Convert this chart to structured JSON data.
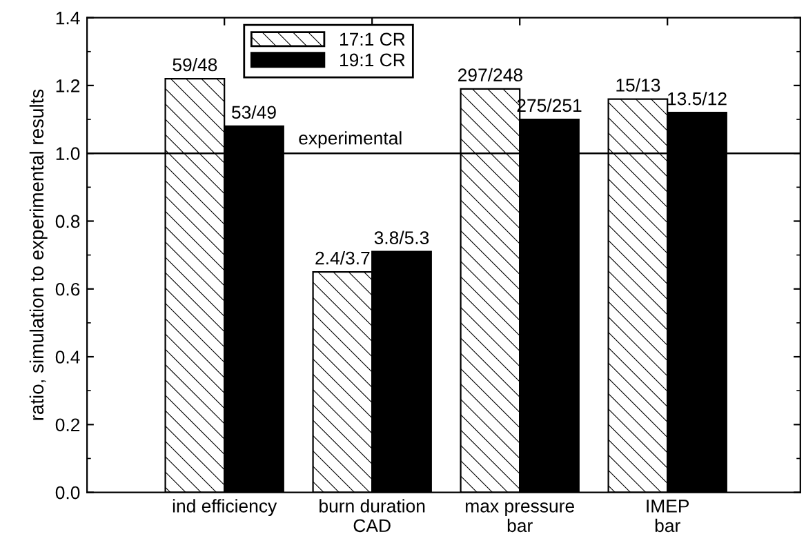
{
  "chart_data": {
    "type": "bar",
    "ylabel": "ratio, simulation to experimental results",
    "categories": [
      "ind efficiency",
      "burn duration\nCAD",
      "max pressure\nbar",
      "IMEP\nbar"
    ],
    "series": [
      {
        "name": "17:1 CR",
        "color": "#ffffff",
        "values": [
          1.22,
          0.65,
          1.19,
          1.16
        ],
        "value_labels": [
          "59/48",
          "2.4/3.7",
          "297/248",
          "15/13"
        ]
      },
      {
        "name": "19:1 CR",
        "color": "#000000",
        "values": [
          1.08,
          0.71,
          1.1,
          1.12
        ],
        "value_labels": [
          "53/49",
          "3.8/5.3",
          "275/251",
          "13.5/12"
        ]
      }
    ],
    "ylim": [
      0,
      1.4
    ],
    "yticks": [
      {
        "value": 0,
        "label": "0.0"
      },
      {
        "value": 0.2,
        "label": "0.2"
      },
      {
        "value": 0.4,
        "label": "0.4"
      },
      {
        "value": 0.6,
        "label": "0.6"
      },
      {
        "value": 0.8,
        "label": "0.8"
      },
      {
        "value": 1.0,
        "label": "1.0"
      },
      {
        "value": 1.2,
        "label": "1.2"
      },
      {
        "value": 1.4,
        "label": "1.4"
      }
    ],
    "ref_lines": [
      {
        "axis": "y",
        "value": 1.0,
        "label": "experimental",
        "color": "#000000"
      }
    ],
    "grid": false,
    "legend": "top left"
  }
}
